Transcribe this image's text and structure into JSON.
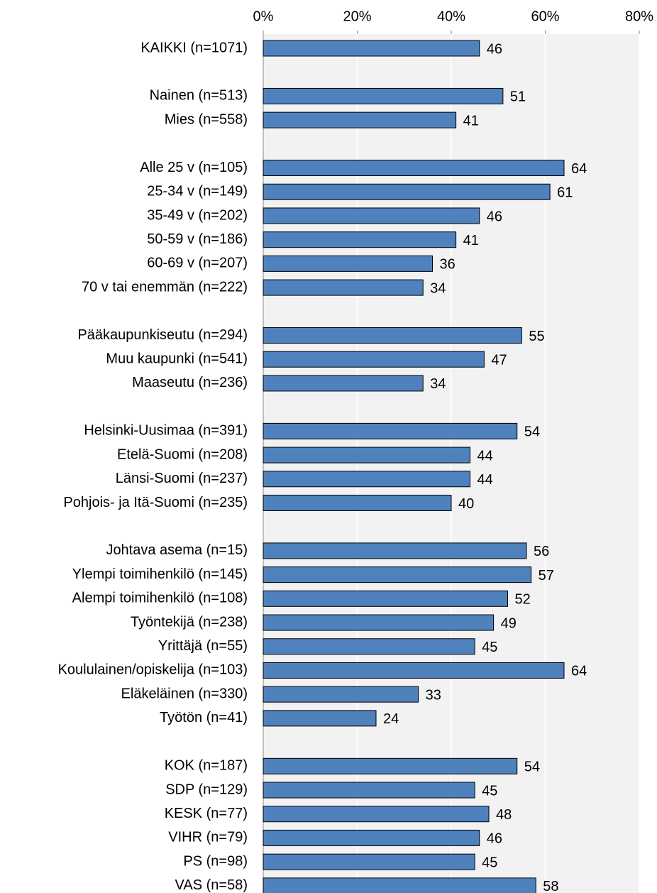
{
  "chart_data": {
    "type": "bar",
    "orientation": "horizontal",
    "categories": [
      "KAIKKI (n=1071)",
      null,
      "Nainen (n=513)",
      "Mies (n=558)",
      null,
      "Alle 25 v (n=105)",
      "25-34 v (n=149)",
      "35-49 v (n=202)",
      "50-59 v (n=186)",
      "60-69 v (n=207)",
      "70 v tai enemmän (n=222)",
      null,
      "Pääkaupunkiseutu (n=294)",
      "Muu kaupunki (n=541)",
      "Maaseutu (n=236)",
      null,
      "Helsinki-Uusimaa (n=391)",
      "Etelä-Suomi (n=208)",
      "Länsi-Suomi (n=237)",
      "Pohjois- ja Itä-Suomi (n=235)",
      null,
      "Johtava asema (n=15)",
      "Ylempi toimihenkilö (n=145)",
      "Alempi toimihenkilö (n=108)",
      "Työntekijä (n=238)",
      "Yrittäjä (n=55)",
      "Koululainen/opiskelija (n=103)",
      "Eläkeläinen (n=330)",
      "Työtön (n=41)",
      null,
      "KOK (n=187)",
      "SDP (n=129)",
      "KESK (n=77)",
      "VIHR (n=79)",
      "PS (n=98)",
      "VAS (n=58)"
    ],
    "values": [
      46,
      null,
      51,
      41,
      null,
      64,
      61,
      46,
      41,
      36,
      34,
      null,
      55,
      47,
      34,
      null,
      54,
      44,
      44,
      40,
      null,
      56,
      57,
      52,
      49,
      45,
      64,
      33,
      24,
      null,
      54,
      45,
      48,
      46,
      45,
      58
    ],
    "color": "#4f81bd",
    "xlim": [
      0,
      80
    ],
    "xticks": [
      {
        "value": 0,
        "label": "0%"
      },
      {
        "value": 20,
        "label": "20%"
      },
      {
        "value": 40,
        "label": "40%"
      },
      {
        "value": 60,
        "label": "60%"
      },
      {
        "value": 80,
        "label": "80%"
      }
    ],
    "grid": true
  }
}
